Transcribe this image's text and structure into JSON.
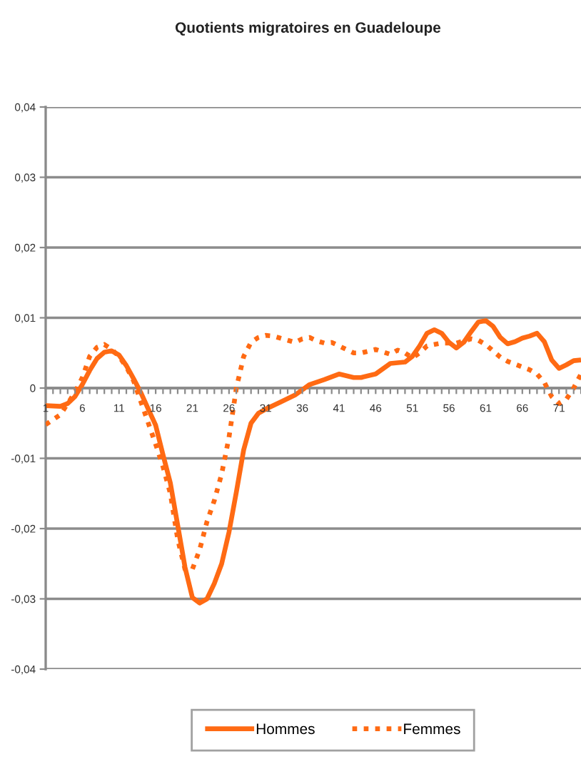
{
  "chart_data": {
    "type": "line",
    "title": "Quotients migratoires en Guadeloupe",
    "xlim": [
      1,
      74
    ],
    "xticks": [
      1,
      {
        "value": 2,
        "label": null
      },
      {
        "value": 3,
        "label": null
      },
      {
        "value": 4,
        "label": null
      },
      {
        "value": 5,
        "label": null
      },
      6,
      {
        "value": 7,
        "label": null
      },
      {
        "value": 8,
        "label": null
      },
      {
        "value": 9,
        "label": null
      },
      {
        "value": 10,
        "label": null
      },
      11,
      {
        "value": 12,
        "label": null
      },
      {
        "value": 13,
        "label": null
      },
      {
        "value": 14,
        "label": null
      },
      {
        "value": 15,
        "label": null
      },
      16,
      {
        "value": 17,
        "label": null
      },
      {
        "value": 18,
        "label": null
      },
      {
        "value": 19,
        "label": null
      },
      {
        "value": 20,
        "label": null
      },
      21,
      {
        "value": 22,
        "label": null
      },
      {
        "value": 23,
        "label": null
      },
      {
        "value": 24,
        "label": null
      },
      {
        "value": 25,
        "label": null
      },
      26,
      {
        "value": 27,
        "label": null
      },
      {
        "value": 28,
        "label": null
      },
      {
        "value": 29,
        "label": null
      },
      {
        "value": 30,
        "label": null
      },
      31,
      {
        "value": 32,
        "label": null
      },
      {
        "value": 33,
        "label": null
      },
      {
        "value": 34,
        "label": null
      },
      {
        "value": 35,
        "label": null
      },
      36,
      {
        "value": 37,
        "label": null
      },
      {
        "value": 38,
        "label": null
      },
      {
        "value": 39,
        "label": null
      },
      {
        "value": 40,
        "label": null
      },
      41,
      {
        "value": 42,
        "label": null
      },
      {
        "value": 43,
        "label": null
      },
      {
        "value": 44,
        "label": null
      },
      {
        "value": 45,
        "label": null
      },
      46,
      {
        "value": 47,
        "label": null
      },
      {
        "value": 48,
        "label": null
      },
      {
        "value": 49,
        "label": null
      },
      {
        "value": 50,
        "label": null
      },
      51,
      {
        "value": 52,
        "label": null
      },
      {
        "value": 53,
        "label": null
      },
      {
        "value": 54,
        "label": null
      },
      {
        "value": 55,
        "label": null
      },
      56,
      {
        "value": 57,
        "label": null
      },
      {
        "value": 58,
        "label": null
      },
      {
        "value": 59,
        "label": null
      },
      {
        "value": 60,
        "label": null
      },
      61,
      {
        "value": 62,
        "label": null
      },
      {
        "value": 63,
        "label": null
      },
      {
        "value": 64,
        "label": null
      },
      {
        "value": 65,
        "label": null
      },
      66,
      {
        "value": 67,
        "label": null
      },
      {
        "value": 68,
        "label": null
      },
      {
        "value": 69,
        "label": null
      },
      {
        "value": 70,
        "label": null
      },
      71,
      {
        "value": 72,
        "label": null
      },
      {
        "value": 73,
        "label": null
      },
      {
        "value": 74,
        "label": null
      }
    ],
    "ylim": [
      -0.04,
      0.04
    ],
    "yticks": [
      {
        "value": -0.04,
        "label": "-0,04"
      },
      {
        "value": -0.03,
        "label": "-0,03"
      },
      {
        "value": -0.02,
        "label": "-0,02"
      },
      {
        "value": -0.01,
        "label": "-0,01"
      },
      0,
      {
        "value": 0.01,
        "label": "0,01"
      },
      {
        "value": 0.02,
        "label": "0,02"
      },
      {
        "value": 0.03,
        "label": "0,03"
      },
      {
        "value": 0.04,
        "label": "0,04"
      }
    ],
    "grid": "y",
    "legend": "bottom",
    "series": [
      {
        "name": "Hommes",
        "color": "#ff6a13",
        "line_style": "solid",
        "x": [
          1,
          3,
          4,
          5,
          6,
          7,
          8,
          9,
          10,
          11,
          12,
          13,
          14,
          15,
          16,
          17,
          18,
          19,
          20,
          21,
          22,
          23,
          24,
          25,
          26,
          27,
          28,
          29,
          30,
          31,
          33,
          35,
          37,
          39,
          41,
          43,
          44,
          46,
          48,
          50,
          51,
          52,
          53,
          54,
          55,
          56,
          57,
          58,
          59,
          60,
          61,
          62,
          63,
          64,
          65,
          66,
          67,
          68,
          69,
          70,
          71,
          72,
          73,
          74
        ],
        "values": [
          -0.0025,
          -0.0026,
          -0.0022,
          -0.0012,
          0.0005,
          0.0025,
          0.0042,
          0.0051,
          0.0053,
          0.0047,
          0.0032,
          0.0013,
          -0.0007,
          -0.003,
          -0.0053,
          -0.0095,
          -0.0135,
          -0.0195,
          -0.0255,
          -0.0298,
          -0.0306,
          -0.03,
          -0.0278,
          -0.025,
          -0.0205,
          -0.0148,
          -0.0088,
          -0.005,
          -0.0036,
          -0.003,
          -0.002,
          -0.001,
          0.0005,
          0.0012,
          0.002,
          0.0015,
          0.0015,
          0.002,
          0.0035,
          0.0037,
          0.0045,
          0.006,
          0.0078,
          0.0083,
          0.0078,
          0.0065,
          0.0057,
          0.0065,
          0.008,
          0.0094,
          0.0096,
          0.0088,
          0.0072,
          0.0063,
          0.0066,
          0.0071,
          0.0074,
          0.0078,
          0.0066,
          0.004,
          0.0028,
          0.0033,
          0.0039,
          0.004
        ]
      },
      {
        "name": "Femmes",
        "color": "#ff6a13",
        "line_style": "dotted",
        "x": [
          1,
          2,
          3,
          4,
          5,
          6,
          7,
          8,
          9,
          10,
          11,
          12,
          13,
          14,
          15,
          16,
          17,
          18,
          19,
          20,
          21,
          22,
          23,
          24,
          25,
          26,
          27,
          28,
          29,
          30,
          31,
          32,
          33,
          34,
          35,
          36,
          37,
          38,
          39,
          40,
          42,
          43,
          44,
          46,
          48,
          49,
          50,
          51,
          52,
          53,
          55,
          57,
          59,
          60,
          61,
          62,
          63,
          64,
          65,
          66,
          67,
          68,
          69,
          70,
          71,
          72,
          73,
          74
        ],
        "values": [
          -0.0052,
          -0.0045,
          -0.0038,
          -0.0022,
          -0.0006,
          0.0015,
          0.0045,
          0.0058,
          0.0062,
          0.0055,
          0.0045,
          0.003,
          0.001,
          -0.002,
          -0.005,
          -0.008,
          -0.0112,
          -0.015,
          -0.0215,
          -0.0258,
          -0.0258,
          -0.023,
          -0.019,
          -0.016,
          -0.0122,
          -0.007,
          0.0,
          0.0045,
          0.0065,
          0.0072,
          0.0075,
          0.0074,
          0.0071,
          0.0068,
          0.0065,
          0.007,
          0.0072,
          0.0067,
          0.0064,
          0.0065,
          0.0055,
          0.005,
          0.005,
          0.0055,
          0.0048,
          0.0054,
          0.005,
          0.0043,
          0.005,
          0.006,
          0.0064,
          0.0064,
          0.007,
          0.0068,
          0.0062,
          0.0053,
          0.0044,
          0.0038,
          0.0034,
          0.003,
          0.0026,
          0.002,
          0.0008,
          -0.0012,
          -0.0022,
          -0.0016,
          0.0,
          0.002
        ]
      }
    ]
  }
}
